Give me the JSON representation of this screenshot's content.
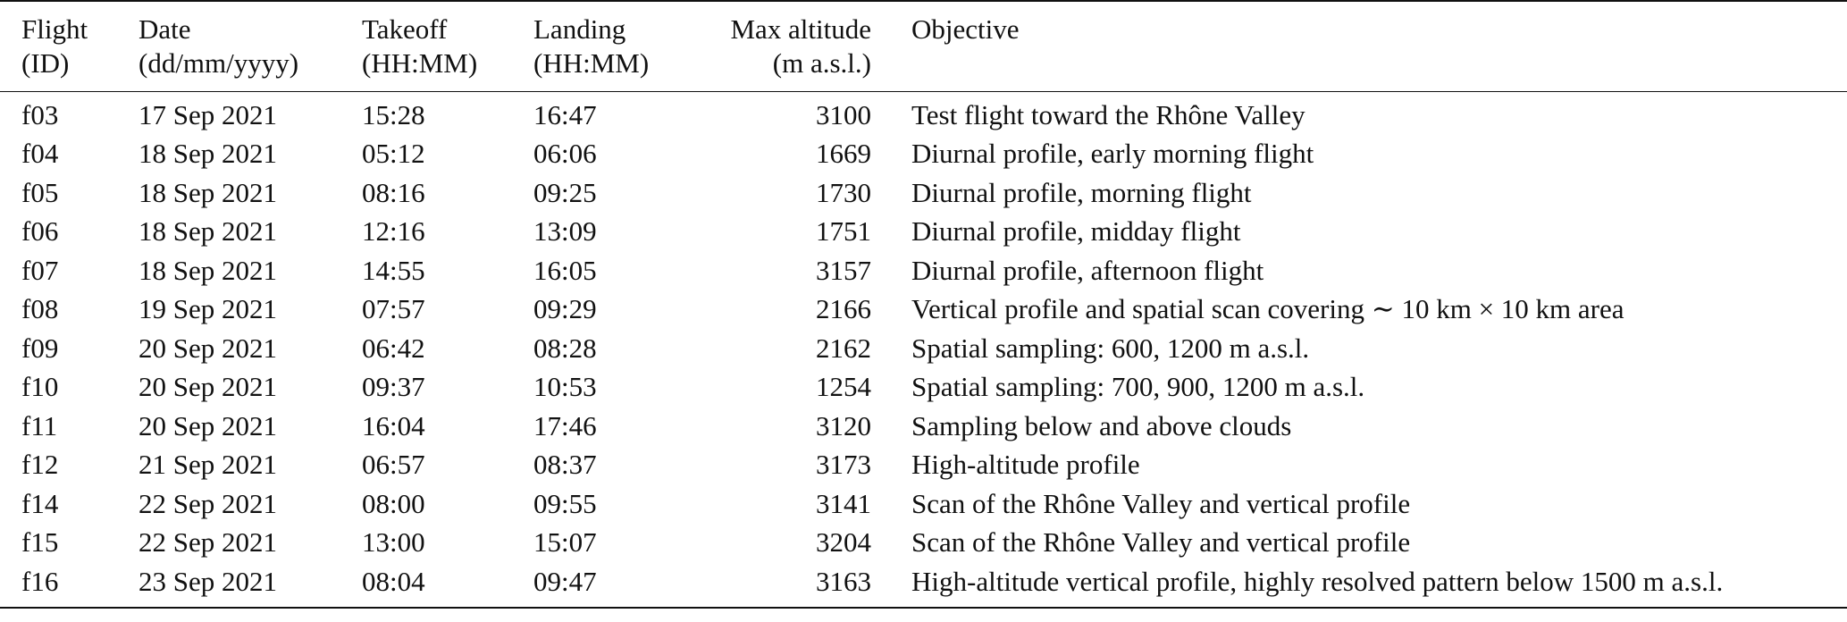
{
  "table": {
    "headers": [
      {
        "line1": "Flight",
        "line2": "(ID)"
      },
      {
        "line1": "Date",
        "line2": "(dd/mm/yyyy)"
      },
      {
        "line1": "Takeoff",
        "line2": "(HH:MM)"
      },
      {
        "line1": "Landing",
        "line2": "(HH:MM)"
      },
      {
        "line1": "Max altitude",
        "line2": "(m a.s.l.)"
      },
      {
        "line1": "Objective",
        "line2": ""
      }
    ],
    "rows": [
      {
        "id": "f03",
        "date": "17 Sep 2021",
        "takeoff": "15:28",
        "landing": "16:47",
        "max_alt": "3100",
        "objective": "Test flight toward the Rhône Valley"
      },
      {
        "id": "f04",
        "date": "18 Sep 2021",
        "takeoff": "05:12",
        "landing": "06:06",
        "max_alt": "1669",
        "objective": "Diurnal profile, early morning flight"
      },
      {
        "id": "f05",
        "date": "18 Sep 2021",
        "takeoff": "08:16",
        "landing": "09:25",
        "max_alt": "1730",
        "objective": "Diurnal profile, morning flight"
      },
      {
        "id": "f06",
        "date": "18 Sep 2021",
        "takeoff": "12:16",
        "landing": "13:09",
        "max_alt": "1751",
        "objective": "Diurnal profile, midday flight"
      },
      {
        "id": "f07",
        "date": "18 Sep 2021",
        "takeoff": "14:55",
        "landing": "16:05",
        "max_alt": "3157",
        "objective": "Diurnal profile, afternoon flight"
      },
      {
        "id": "f08",
        "date": "19 Sep 2021",
        "takeoff": "07:57",
        "landing": "09:29",
        "max_alt": "2166",
        "objective": "Vertical profile and spatial scan covering ∼ 10 km × 10 km area"
      },
      {
        "id": "f09",
        "date": "20 Sep 2021",
        "takeoff": "06:42",
        "landing": "08:28",
        "max_alt": "2162",
        "objective": "Spatial sampling: 600, 1200 m a.s.l."
      },
      {
        "id": "f10",
        "date": "20 Sep 2021",
        "takeoff": "09:37",
        "landing": "10:53",
        "max_alt": "1254",
        "objective": "Spatial sampling: 700, 900, 1200 m a.s.l."
      },
      {
        "id": "f11",
        "date": "20 Sep 2021",
        "takeoff": "16:04",
        "landing": "17:46",
        "max_alt": "3120",
        "objective": "Sampling below and above clouds"
      },
      {
        "id": "f12",
        "date": "21 Sep 2021",
        "takeoff": "06:57",
        "landing": "08:37",
        "max_alt": "3173",
        "objective": "High-altitude profile"
      },
      {
        "id": "f14",
        "date": "22 Sep 2021",
        "takeoff": "08:00",
        "landing": "09:55",
        "max_alt": "3141",
        "objective": "Scan of the Rhône Valley and vertical profile"
      },
      {
        "id": "f15",
        "date": "22 Sep 2021",
        "takeoff": "13:00",
        "landing": "15:07",
        "max_alt": "3204",
        "objective": "Scan of the Rhône Valley and vertical profile"
      },
      {
        "id": "f16",
        "date": "23 Sep 2021",
        "takeoff": "08:04",
        "landing": "09:47",
        "max_alt": "3163",
        "objective": "High-altitude vertical profile, highly resolved pattern below 1500 m a.s.l."
      }
    ]
  }
}
